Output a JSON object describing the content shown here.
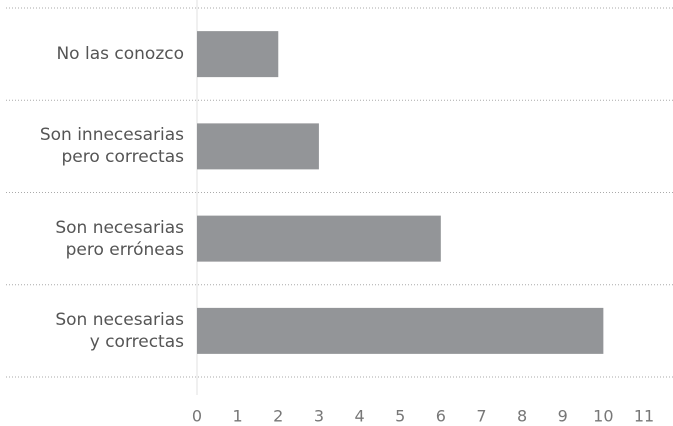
{
  "chart_data": {
    "type": "barh",
    "categories": [
      "No las conozco",
      "Son innecesarias\npero correctas",
      "Son necesarias\npero erróneas",
      "Son necesarias\ny correctas"
    ],
    "values": [
      2,
      3,
      6,
      10
    ],
    "color": "#939598",
    "xlim": [
      0,
      11
    ],
    "xticks": [
      0,
      1,
      2,
      3,
      4,
      5,
      6,
      7,
      8,
      9,
      10,
      11
    ]
  }
}
